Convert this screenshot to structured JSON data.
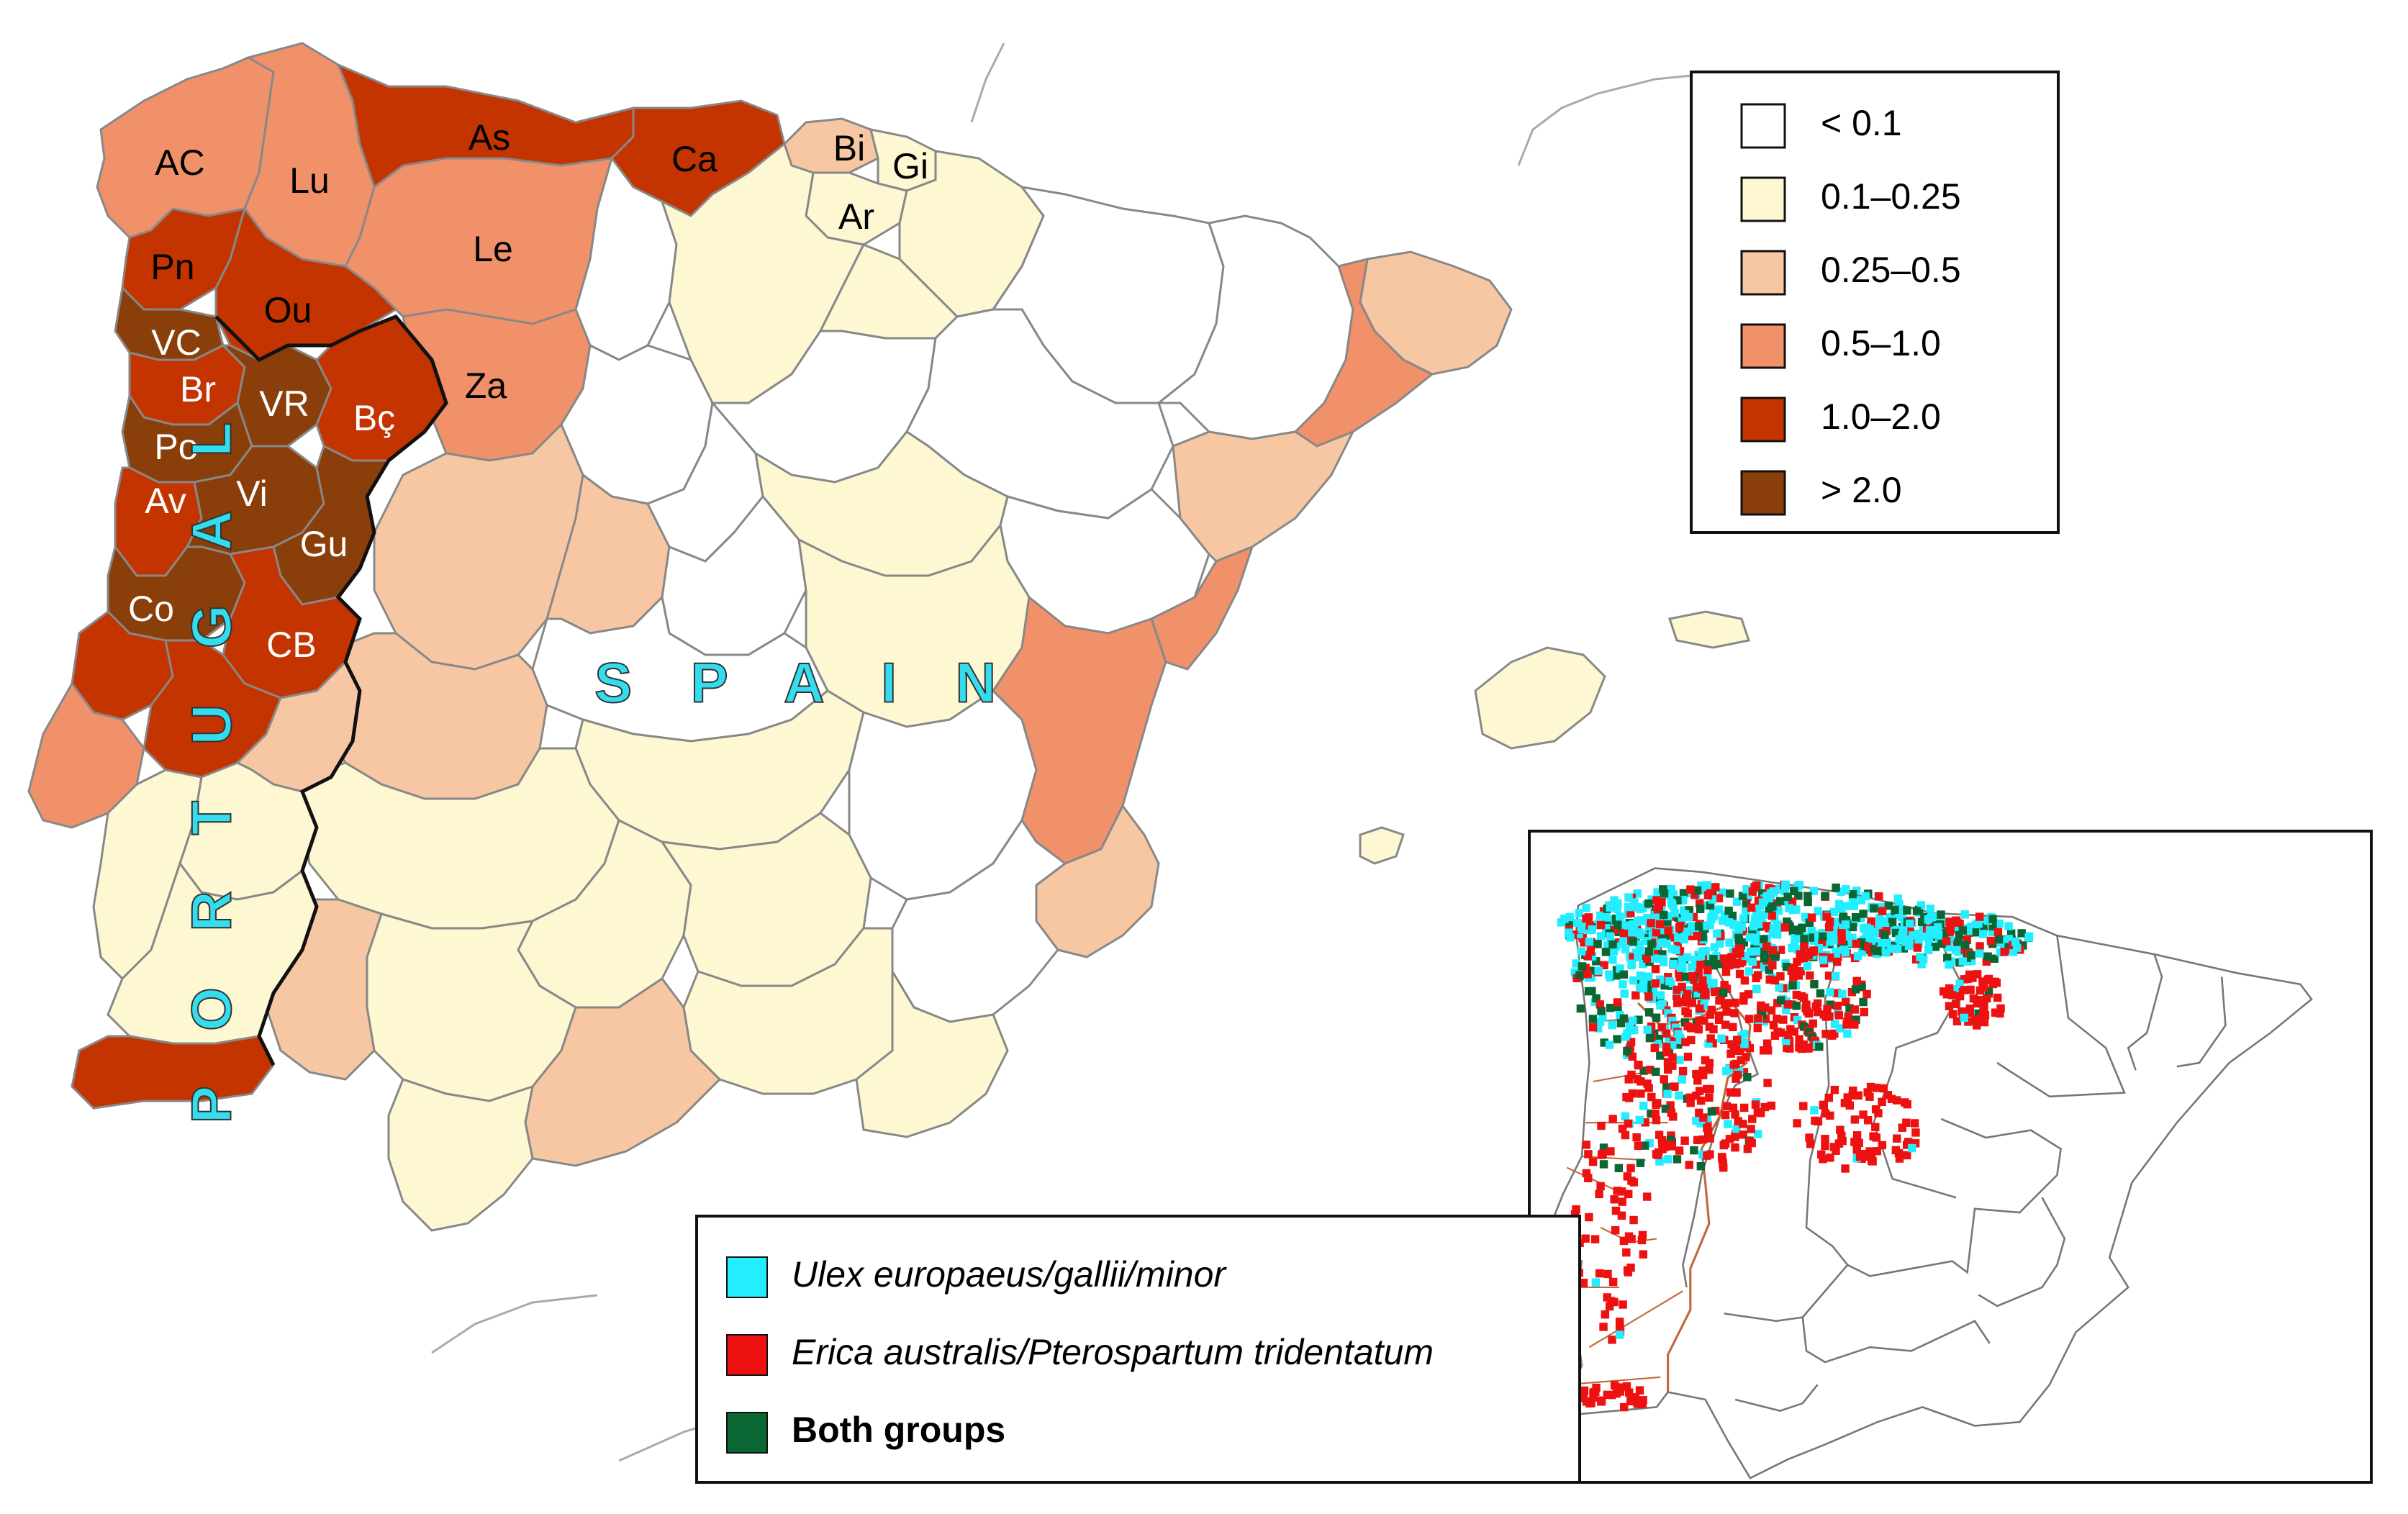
{
  "colors": {
    "background": "#ffffff",
    "class_lt_0_1": "#ffffff",
    "class_0_1_0_25": "#fdf8d2",
    "class_0_25_0_5": "#f7c7a3",
    "class_0_5_1_0": "#f0916a",
    "class_1_0_2_0": "#c33400",
    "class_gt_2_0": "#8a3e0a",
    "ulex_cyan": "#22eeff",
    "erica_red": "#ee1111",
    "both_green": "#0a6633",
    "portugal_border": "#111111",
    "province_border": "#888888"
  },
  "legend": {
    "items": [
      {
        "label": "< 0.1",
        "color": "#ffffff"
      },
      {
        "label": "0.1–0.25",
        "color": "#fdf8d2"
      },
      {
        "label": "0.25–0.5",
        "color": "#f7c7a3"
      },
      {
        "label": "0.5–1.0",
        "color": "#f0916a"
      },
      {
        "label": "1.0–2.0",
        "color": "#c33400"
      },
      {
        "label": "> 2.0",
        "color": "#8a3e0a"
      }
    ]
  },
  "country_labels": {
    "spain": "S P A I N",
    "portugal": "P O R T U G A L"
  },
  "region_labels": [
    "AC",
    "Lu",
    "As",
    "Ca",
    "Bi",
    "Gi",
    "Ar",
    "Le",
    "Pn",
    "Ou",
    "VC",
    "Br",
    "VR",
    "Bç",
    "Za",
    "Po",
    "Av",
    "Vi",
    "Gu",
    "Co",
    "CB"
  ],
  "inset_legend": {
    "items": [
      {
        "label": "Ulex europaeus/gallii/minor",
        "color": "#22eeff",
        "italic": true
      },
      {
        "label": "Erica australis/Pterospartum tridentatum",
        "color": "#ee1111",
        "italic": true
      },
      {
        "label": "Both groups",
        "color": "#0a6633",
        "italic": false
      }
    ]
  }
}
